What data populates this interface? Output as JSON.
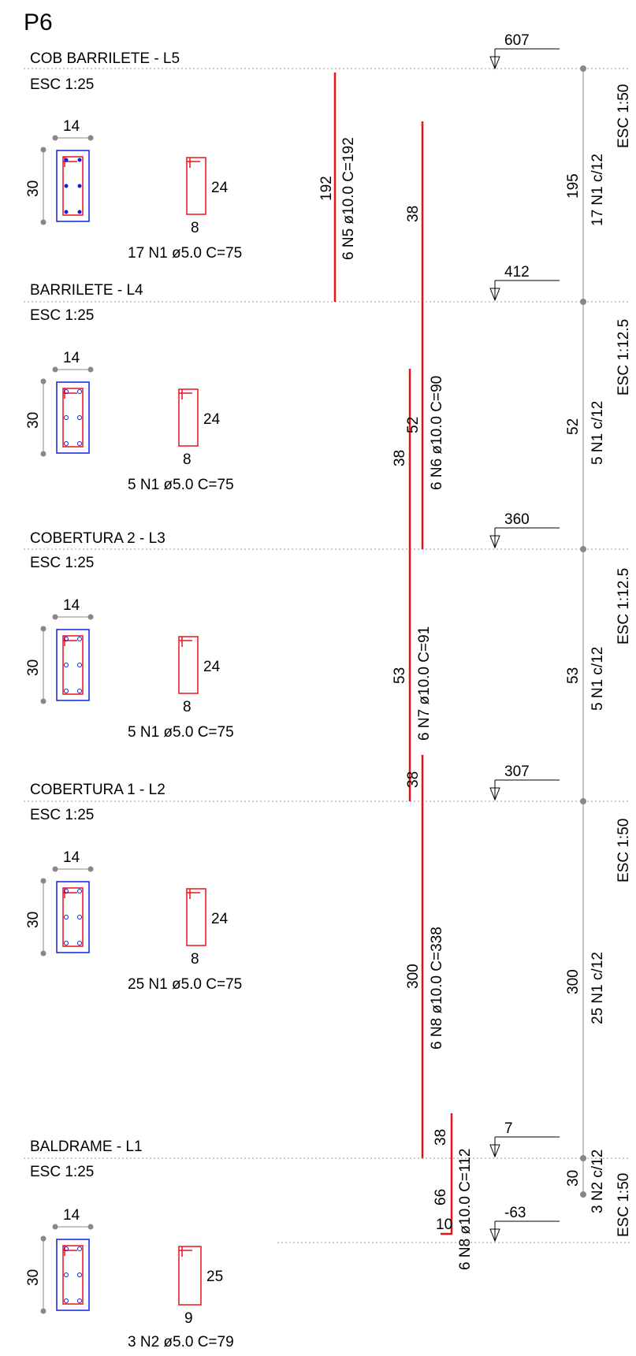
{
  "page_title": "P6",
  "colors": {
    "rebar": "#e8141b",
    "section": "#1020e0",
    "dim_dot": "#888888"
  },
  "levels": [
    {
      "name": "COB BARRILETE  - L5",
      "esc": "ESC 1:25",
      "elev": "607"
    },
    {
      "name": "BARRILETE  - L4",
      "esc": "ESC 1:25",
      "elev": "412"
    },
    {
      "name": "COBERTURA 2 - L3",
      "esc": "ESC 1:25",
      "elev": "360"
    },
    {
      "name": "COBERTURA 1 - L2",
      "esc": "ESC 1:25",
      "elev": "307"
    },
    {
      "name": "BALDRAME - L1",
      "esc": "ESC 1:25",
      "elev": "7"
    }
  ],
  "bottom_elev": "-63",
  "sections": [
    {
      "width": "14",
      "height": "30",
      "stirrup_h": "24",
      "stirrup_w": "8",
      "stirrup_label": "17 N1 ø5.0 C=75"
    },
    {
      "width": "14",
      "height": "30",
      "stirrup_h": "24",
      "stirrup_w": "8",
      "stirrup_label": "5 N1 ø5.0 C=75"
    },
    {
      "width": "14",
      "height": "30",
      "stirrup_h": "24",
      "stirrup_w": "8",
      "stirrup_label": "5 N1 ø5.0 C=75"
    },
    {
      "width": "14",
      "height": "30",
      "stirrup_h": "24",
      "stirrup_w": "8",
      "stirrup_label": "25 N1 ø5.0 C=75"
    },
    {
      "width": "14",
      "height": "30",
      "stirrup_h": "25",
      "stirrup_w": "9",
      "stirrup_label": "3 N2 ø5.0 C=79"
    }
  ],
  "bars": {
    "n5": {
      "len": "192",
      "label": "6 N5 ø10.0 C=192"
    },
    "n6": {
      "lap": "38",
      "len": "52",
      "label": "6 N6 ø10.0 C=90",
      "lap_top": "38"
    },
    "n7": {
      "lap": "38",
      "len": "53",
      "label": "6 N7 ø10.0 C=91"
    },
    "n8": {
      "lap": "38",
      "len": "300",
      "label": "6 N8 ø10.0 C=338"
    },
    "n8b": {
      "lap": "38",
      "len": "66",
      "hook": "10",
      "label": "6 N8 ø10.0 C=112"
    }
  },
  "stirrup_dims": [
    {
      "len": "195",
      "label": "17 N1 c/12",
      "esc": "ESC 1:50"
    },
    {
      "len": "52",
      "label": "5 N1 c/12",
      "esc": "ESC 1:12.5"
    },
    {
      "len": "53",
      "label": "5 N1 c/12",
      "esc": "ESC 1:12.5"
    },
    {
      "len": "300",
      "label": "25 N1 c/12",
      "esc": "ESC 1:50"
    },
    {
      "len": "30",
      "label": "3 N2 c/12",
      "esc": "ESC 1:50"
    }
  ]
}
